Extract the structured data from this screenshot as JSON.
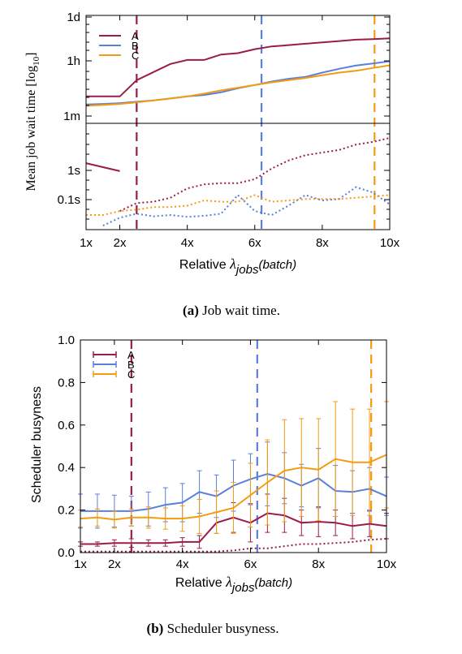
{
  "captions": {
    "a_label": "(a)",
    "a_text": "Job wait time.",
    "b_label": "(b)",
    "b_text": "Scheduler busyness."
  },
  "chart_data": [
    {
      "type": "line",
      "xlabel": "Relative λjobs(batch)",
      "xlabel_main": "Relative",
      "xlabel_lambda": "λ",
      "xlabel_sub": "jobs",
      "xlabel_paren": "(batch)",
      "ylabel": "Mean job wait time [log10]",
      "ylabel_main": "Mean job wait time [log",
      "ylabel_sub": "10",
      "ylabel_end": "]",
      "xlim": [
        1,
        10
      ],
      "x_ticks": [
        {
          "v": 1,
          "t": "1x"
        },
        {
          "v": 2,
          "t": "2x"
        },
        {
          "v": 4,
          "t": "4x"
        },
        {
          "v": 6,
          "t": "6x"
        },
        {
          "v": 8,
          "t": "8x"
        },
        {
          "v": 10,
          "t": "10x"
        }
      ],
      "y_scale": "broken-log",
      "y_ticks_upper": [
        "1d",
        "1h",
        "1m"
      ],
      "y_ticks_lower": [
        "1s",
        "0.1s"
      ],
      "legend_position": "top-left",
      "x": [
        1,
        1.5,
        2,
        2.5,
        3,
        3.5,
        4,
        4.5,
        5,
        5.5,
        6,
        6.5,
        7,
        7.5,
        8,
        8.5,
        9,
        9.5,
        10
      ],
      "series": [
        {
          "name": "A",
          "color": "#9b1c48",
          "style": "solid",
          "segment": "upper",
          "values": [
            1,
            1,
            1,
            1.6,
            1.9,
            2.2,
            2.35,
            2.35,
            2.55,
            2.6,
            2.75,
            2.85,
            2.9,
            2.95,
            3.0,
            3.05,
            3.1,
            3.12,
            3.15
          ]
        },
        {
          "name": "B",
          "color": "#5b7fdb",
          "style": "solid",
          "segment": "upper",
          "values": [
            0.7,
            0.72,
            0.75,
            0.8,
            0.85,
            0.92,
            1.0,
            1.05,
            1.15,
            1.3,
            1.42,
            1.55,
            1.65,
            1.72,
            1.88,
            2.02,
            2.14,
            2.22,
            2.3
          ]
        },
        {
          "name": "C",
          "color": "#f39c12",
          "style": "solid",
          "segment": "upper",
          "values": [
            0.65,
            0.68,
            0.72,
            0.78,
            0.85,
            0.92,
            1.0,
            1.1,
            1.22,
            1.32,
            1.42,
            1.52,
            1.6,
            1.68,
            1.78,
            1.88,
            1.95,
            2.05,
            2.15
          ]
        },
        {
          "name": "A",
          "color": "#9b1c48",
          "style": "solid",
          "segment": "lower",
          "values": [
            2.5,
            2.35,
            2.2,
            null,
            null,
            null,
            null,
            null,
            null,
            null,
            null,
            null,
            null,
            null,
            null,
            null,
            null,
            null,
            null
          ]
        },
        {
          "name": "A",
          "color": "#9b1c48",
          "style": "dotted",
          "segment": "lower",
          "values": [
            null,
            null,
            0.7,
            1.0,
            1.05,
            1.2,
            1.55,
            1.7,
            1.75,
            1.75,
            1.9,
            2.3,
            2.6,
            2.8,
            2.9,
            3.0,
            3.2,
            3.3,
            3.45
          ]
        },
        {
          "name": "B",
          "color": "#5b7fdb",
          "style": "dotted",
          "segment": "lower",
          "values": [
            null,
            0.15,
            0.45,
            0.6,
            0.5,
            0.55,
            0.48,
            0.52,
            0.6,
            1.3,
            0.7,
            0.55,
            0.9,
            1.3,
            1.1,
            1.15,
            1.6,
            1.4,
            0.95
          ]
        },
        {
          "name": "C",
          "color": "#f39c12",
          "style": "dotted",
          "segment": "lower",
          "values": [
            0.55,
            0.55,
            0.7,
            0.75,
            0.85,
            0.85,
            0.9,
            1.1,
            1.05,
            1.05,
            1.3,
            1.05,
            1.1,
            1.15,
            1.15,
            1.15,
            1.2,
            1.25,
            1.3
          ]
        }
      ],
      "vlines": [
        {
          "x": 2.5,
          "color": "#9b1c48"
        },
        {
          "x": 6.2,
          "color": "#5b7fdb"
        },
        {
          "x": 9.55,
          "color": "#f39c12"
        }
      ]
    },
    {
      "type": "line",
      "xlabel": "Relative λjobs(batch)",
      "xlabel_main": "Relative",
      "xlabel_lambda": "λ",
      "xlabel_sub": "jobs",
      "xlabel_paren": "(batch)",
      "ylabel": "Scheduler busyness",
      "xlim": [
        1,
        10
      ],
      "ylim": [
        0,
        1.0
      ],
      "x_ticks": [
        {
          "v": 1,
          "t": "1x"
        },
        {
          "v": 2,
          "t": "2x"
        },
        {
          "v": 4,
          "t": "4x"
        },
        {
          "v": 6,
          "t": "6x"
        },
        {
          "v": 8,
          "t": "8x"
        },
        {
          "v": 10,
          "t": "10x"
        }
      ],
      "y_ticks": [
        {
          "v": 0,
          "t": "0.0"
        },
        {
          "v": 0.2,
          "t": "0.2"
        },
        {
          "v": 0.4,
          "t": "0.4"
        },
        {
          "v": 0.6,
          "t": "0.6"
        },
        {
          "v": 0.8,
          "t": "0.8"
        },
        {
          "v": 1.0,
          "t": "1.0"
        }
      ],
      "legend_position": "top-left",
      "x": [
        1,
        1.5,
        2,
        2.5,
        3,
        3.5,
        4,
        4.5,
        5,
        5.5,
        6,
        6.5,
        7,
        7.5,
        8,
        8.5,
        9,
        9.5,
        10
      ],
      "series": [
        {
          "name": "A",
          "color": "#9b1c48",
          "style": "solid",
          "values": [
            0.04,
            0.04,
            0.045,
            0.045,
            0.045,
            0.045,
            0.05,
            0.05,
            0.14,
            0.165,
            0.14,
            0.185,
            0.175,
            0.14,
            0.145,
            0.14,
            0.125,
            0.135,
            0.125
          ],
          "err": [
            0.01,
            0.01,
            0.015,
            0.02,
            0.015,
            0.015,
            0.02,
            0.03,
            0.05,
            0.07,
            0.09,
            0.09,
            0.08,
            0.06,
            0.07,
            0.06,
            0.06,
            0.06,
            0.06
          ]
        },
        {
          "name": "B",
          "color": "#5b7fdb",
          "style": "solid",
          "values": [
            0.195,
            0.195,
            0.195,
            0.195,
            0.205,
            0.225,
            0.235,
            0.285,
            0.265,
            0.315,
            0.345,
            0.37,
            0.35,
            0.315,
            0.35,
            0.29,
            0.285,
            0.3,
            0.265
          ],
          "err": [
            0.08,
            0.08,
            0.075,
            0.07,
            0.08,
            0.08,
            0.09,
            0.1,
            0.1,
            0.12,
            0.12,
            0.15,
            0.12,
            0.1,
            0.14,
            0.12,
            0.1,
            0.1,
            0.09
          ]
        },
        {
          "name": "C",
          "color": "#f39c12",
          "style": "solid",
          "values": [
            0.16,
            0.165,
            0.155,
            0.165,
            0.165,
            0.16,
            0.16,
            0.17,
            0.19,
            0.21,
            0.27,
            0.33,
            0.385,
            0.4,
            0.39,
            0.44,
            0.425,
            0.425,
            0.46
          ],
          "err": [
            0.04,
            0.04,
            0.04,
            0.04,
            0.05,
            0.05,
            0.06,
            0.08,
            0.1,
            0.12,
            0.15,
            0.2,
            0.24,
            0.23,
            0.24,
            0.27,
            0.25,
            0.25,
            0.25
          ]
        },
        {
          "name": "A",
          "color": "#9b1c48",
          "style": "dotted",
          "values": [
            0.005,
            0.005,
            0.005,
            0.005,
            0.005,
            0.005,
            0.005,
            0.005,
            0.005,
            0.01,
            0.02,
            0.02,
            0.03,
            0.04,
            0.04,
            0.045,
            0.05,
            0.06,
            0.065
          ]
        }
      ],
      "vlines": [
        {
          "x": 2.5,
          "color": "#9b1c48"
        },
        {
          "x": 6.2,
          "color": "#5b7fdb"
        },
        {
          "x": 9.55,
          "color": "#f39c12"
        }
      ]
    }
  ]
}
